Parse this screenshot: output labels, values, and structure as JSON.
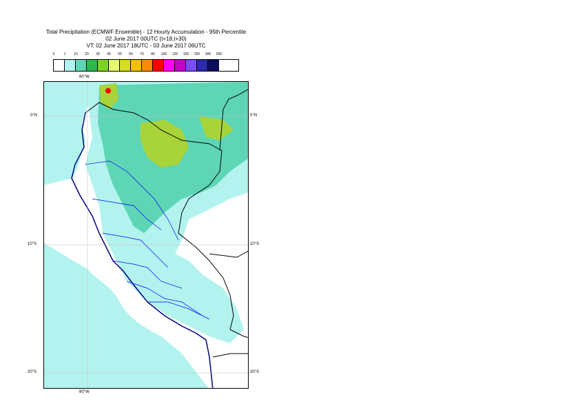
{
  "title": {
    "line1": "Total Precipitation (ECMWF Ensemble) - 12 Hourly Accumulation - 95th Percentile",
    "line2": "02 June 2017 00UTC (t+18,t+30)",
    "line3": "VT: 02 June 2017 18UTC - 03 June 2017 06UTC"
  },
  "legend": {
    "labels": [
      "0",
      "1",
      "10",
      "20",
      "30",
      "40",
      "50",
      "60",
      "70",
      "80",
      "100",
      "125",
      "150",
      "200",
      "300",
      "500"
    ],
    "colors": [
      "#ffffff",
      "#b3f3ef",
      "#5ed6b6",
      "#2fb84e",
      "#7cd420",
      "#e6fa6e",
      "#d7dc24",
      "#f5c000",
      "#ff8a00",
      "#ff0000",
      "#ff00ff",
      "#c400c8",
      "#7c4cff",
      "#2a2aaa",
      "#0d0d5c"
    ]
  },
  "axes": {
    "lon_top": "80°W",
    "lon_bottom": "80°W",
    "lat_0_left": "0°N",
    "lat_0_right": "0°N",
    "lat_10_left": "10°S",
    "lat_10_right": "10°S",
    "lat_20_left": "20°S",
    "lat_20_right": "20°S"
  },
  "map_colors": {
    "ocean_light": "#b3f3ef",
    "medium": "#5ed6b6",
    "heavy": "#a8d43a",
    "peak": "#ff0000",
    "coast": "#000080",
    "borders": "#0000ff"
  }
}
